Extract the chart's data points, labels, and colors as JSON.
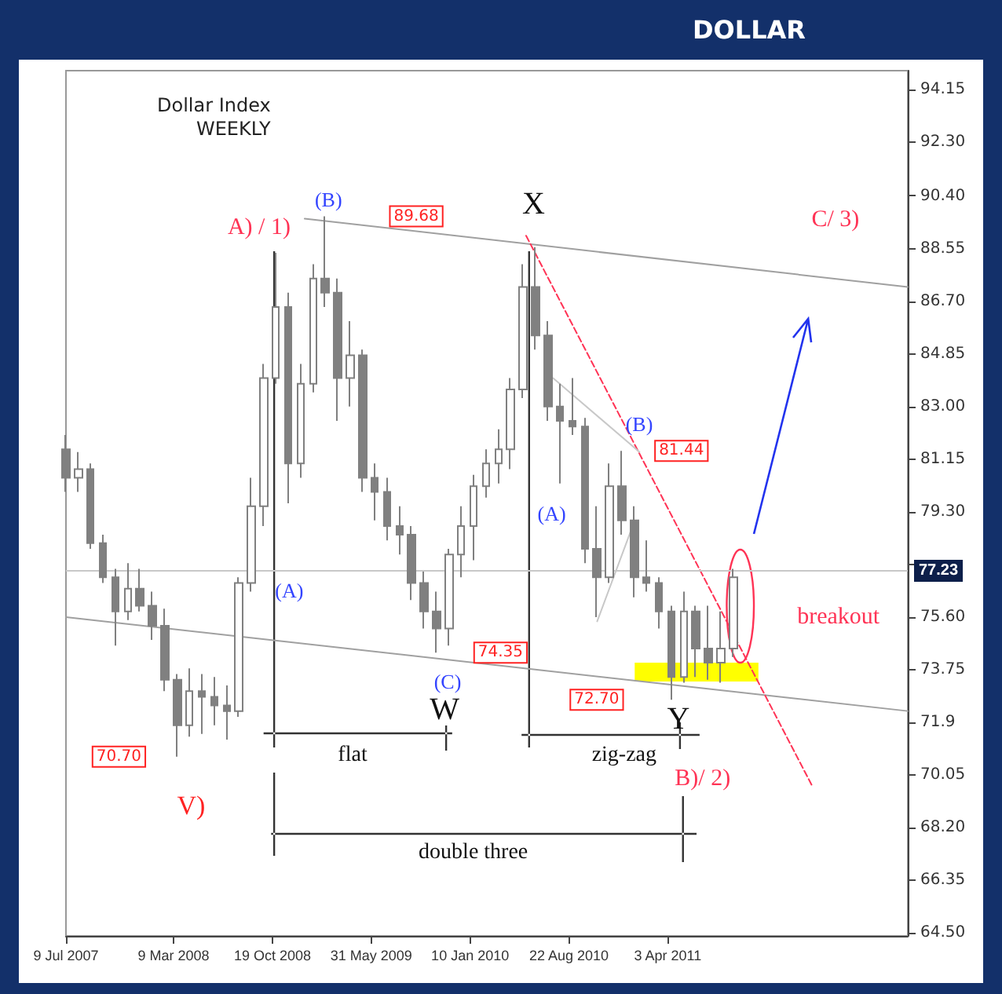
{
  "chart_data": {
    "type": "candlestick",
    "title": "DOLLAR",
    "subtitle": "Dollar Index",
    "color": "#808080",
    "x": [
      "2007-07-09",
      "2007-08-06",
      "2007-09-03",
      "2007-10-01",
      "2007-10-29",
      "2007-11-26",
      "2007-12-24",
      "2008-01-21",
      "2008-02-18",
      "2008-03-17",
      "2008-04-14",
      "2008-05-12",
      "2008-06-09",
      "2008-07-07",
      "2008-08-04",
      "2008-09-01",
      "2008-09-29",
      "2008-10-27",
      "2008-11-24",
      "2008-12-22",
      "2009-01-19",
      "2009-02-16",
      "2009-03-16",
      "2009-04-13",
      "2009-05-11",
      "2009-06-08",
      "2009-07-06",
      "2009-08-03",
      "2009-08-31",
      "2009-09-28",
      "2009-10-26",
      "2009-11-23",
      "2009-12-21",
      "2010-01-18",
      "2010-02-15",
      "2010-03-15",
      "2010-04-12",
      "2010-05-10",
      "2010-06-07",
      "2010-07-05",
      "2010-08-02",
      "2010-08-30",
      "2010-09-27",
      "2010-10-25",
      "2010-11-22",
      "2010-12-20",
      "2011-01-17",
      "2011-02-14",
      "2011-03-14",
      "2011-04-11",
      "2011-05-09",
      "2011-06-06",
      "2011-07-04",
      "2011-08-01",
      "2011-08-29"
    ],
    "ohlc": [
      [
        81.5,
        82.0,
        80.0,
        80.5
      ],
      [
        80.5,
        81.4,
        80.0,
        80.8
      ],
      [
        80.8,
        81.0,
        78.0,
        78.2
      ],
      [
        78.2,
        78.5,
        76.8,
        77.0
      ],
      [
        77.0,
        77.3,
        74.6,
        75.8
      ],
      [
        75.8,
        77.5,
        75.5,
        76.6
      ],
      [
        76.6,
        77.3,
        75.8,
        76.0
      ],
      [
        76.0,
        76.5,
        74.8,
        75.3
      ],
      [
        75.3,
        75.9,
        73.0,
        73.4
      ],
      [
        73.4,
        73.6,
        70.7,
        71.8
      ],
      [
        71.8,
        73.8,
        71.4,
        73.0
      ],
      [
        73.0,
        73.6,
        71.5,
        72.8
      ],
      [
        72.8,
        73.5,
        71.8,
        72.5
      ],
      [
        72.5,
        73.2,
        71.3,
        72.3
      ],
      [
        72.3,
        77.0,
        72.1,
        76.8
      ],
      [
        76.8,
        80.5,
        76.5,
        79.5
      ],
      [
        79.5,
        84.5,
        78.8,
        84.0
      ],
      [
        84.0,
        88.4,
        83.8,
        86.5
      ],
      [
        86.5,
        87.0,
        79.6,
        81.0
      ],
      [
        81.0,
        84.5,
        80.5,
        83.8
      ],
      [
        83.8,
        88.0,
        83.5,
        87.5
      ],
      [
        87.5,
        89.68,
        86.5,
        87.0
      ],
      [
        87.0,
        87.5,
        82.5,
        84.0
      ],
      [
        84.0,
        86.0,
        83.0,
        84.8
      ],
      [
        84.8,
        85.0,
        80.0,
        80.5
      ],
      [
        80.5,
        81.0,
        79.0,
        80.0
      ],
      [
        80.0,
        80.5,
        78.3,
        78.8
      ],
      [
        78.8,
        79.5,
        77.8,
        78.5
      ],
      [
        78.5,
        78.8,
        76.2,
        76.8
      ],
      [
        76.8,
        77.2,
        75.2,
        75.8
      ],
      [
        75.8,
        76.5,
        74.35,
        75.2
      ],
      [
        75.2,
        78.0,
        74.6,
        77.8
      ],
      [
        77.8,
        79.5,
        77.0,
        78.8
      ],
      [
        78.8,
        80.6,
        77.6,
        80.2
      ],
      [
        80.2,
        81.5,
        79.8,
        81.0
      ],
      [
        81.0,
        82.2,
        80.3,
        81.5
      ],
      [
        81.5,
        84.0,
        80.8,
        83.6
      ],
      [
        83.6,
        88.0,
        83.3,
        87.2
      ],
      [
        87.2,
        88.6,
        85.0,
        85.5
      ],
      [
        85.5,
        86.0,
        82.5,
        83.0
      ],
      [
        83.0,
        83.8,
        80.3,
        82.5
      ],
      [
        82.5,
        84.0,
        82.0,
        82.3
      ],
      [
        82.3,
        82.6,
        77.5,
        78.0
      ],
      [
        78.0,
        79.5,
        75.6,
        77.0
      ],
      [
        77.0,
        81.0,
        76.8,
        80.2
      ],
      [
        80.2,
        81.44,
        78.5,
        79.0
      ],
      [
        79.0,
        79.5,
        76.3,
        77.0
      ],
      [
        77.0,
        78.3,
        76.5,
        76.8
      ],
      [
        76.8,
        77.0,
        75.2,
        75.8
      ],
      [
        75.8,
        76.0,
        72.7,
        73.5
      ],
      [
        73.5,
        76.5,
        73.3,
        75.8
      ],
      [
        75.8,
        76.0,
        73.5,
        74.5
      ],
      [
        74.5,
        76.0,
        73.4,
        74.0
      ],
      [
        74.0,
        75.8,
        73.3,
        74.5
      ],
      [
        74.5,
        77.3,
        74.2,
        77.0
      ]
    ],
    "series": [
      {
        "type": "line",
        "color": "#a0a0a0",
        "line_style": "solid",
        "x": [
          "2008-12-31",
          "2012-09-28"
        ],
        "values": [
          89.6,
          87.2
        ]
      },
      {
        "type": "line",
        "color": "#a0a0a0",
        "line_style": "solid",
        "x": [
          "2007-07-09",
          "2012-09-28"
        ],
        "values": [
          75.6,
          72.3
        ]
      },
      {
        "type": "line",
        "color": "#ff3355",
        "line_style": "dashed",
        "x": [
          "2010-05-17",
          "2012-02-25"
        ],
        "values": [
          89.0,
          69.65
        ]
      },
      {
        "type": "line",
        "color": "#c8c8c8",
        "line_style": "solid",
        "x": [
          "2010-07-17",
          "2011-01-29"
        ],
        "values": [
          84.0,
          81.4
        ]
      },
      {
        "type": "line",
        "color": "#c8c8c8",
        "line_style": "solid",
        "x": [
          "2010-10-25",
          "2011-01-11"
        ],
        "values": [
          75.45,
          78.7
        ]
      }
    ],
    "xlim": [
      "2007-07-09",
      "2012-09-28"
    ],
    "xticks": [
      {
        "value": "2007-07-09",
        "label": "9 Jul 2007"
      },
      {
        "value": "2008-03-09",
        "label": "9 Mar 2008"
      },
      {
        "value": "2008-10-19",
        "label": "19 Oct 2008"
      },
      {
        "value": "2009-05-31",
        "label": "31 May 2009"
      },
      {
        "value": "2010-01-10",
        "label": "10 Jan 2010"
      },
      {
        "value": "2010-08-22",
        "label": "22 Aug 2010"
      },
      {
        "value": "2011-04-03",
        "label": "3 Apr 2011"
      }
    ],
    "ylim": [
      64.4,
      94.8
    ],
    "yticks": [
      {
        "value": 64.5,
        "label": "64.50"
      },
      66.35,
      {
        "value": 68.2,
        "label": "68.20"
      },
      70.05,
      71.9,
      73.75,
      {
        "value": 75.6,
        "label": "75.60"
      },
      {
        "value": 77.45,
        "label": null
      },
      {
        "value": 79.3,
        "label": "79.30"
      },
      81.15,
      {
        "value": 83,
        "label": "83.00"
      },
      84.85,
      {
        "value": 86.7,
        "label": "86.70"
      },
      88.55,
      {
        "value": 90.4,
        "label": "90.40"
      },
      {
        "value": 92.3,
        "label": "92.30"
      },
      94.15
    ],
    "ref_lines": [
      {
        "axis": "y",
        "value": 77.23,
        "label": "77.23",
        "color": "#c8c8c8"
      }
    ],
    "annotations": [
      "WEEKLY",
      "A) / 1)",
      "(B)",
      {
        "text": "89.68",
        "x": "2009-09-10",
        "y": 89.68
      },
      "X",
      "(A)",
      "(C)",
      "W",
      {
        "text": "74.35",
        "x": "2010-03-20",
        "y": 74.35
      },
      "flat",
      "V)",
      {
        "text": "70.70",
        "x": "2007-11-06",
        "y": 70.7
      },
      "double three",
      "(A)",
      "(B)",
      {
        "text": "81.44",
        "x": "2011-05-04",
        "y": 81.44
      },
      {
        "text": "72.70",
        "x": "2010-10-24",
        "y": 72.7
      },
      "zig-zag",
      "Y",
      "B)/ 2)",
      "C/ 3)",
      "breakout"
    ]
  }
}
